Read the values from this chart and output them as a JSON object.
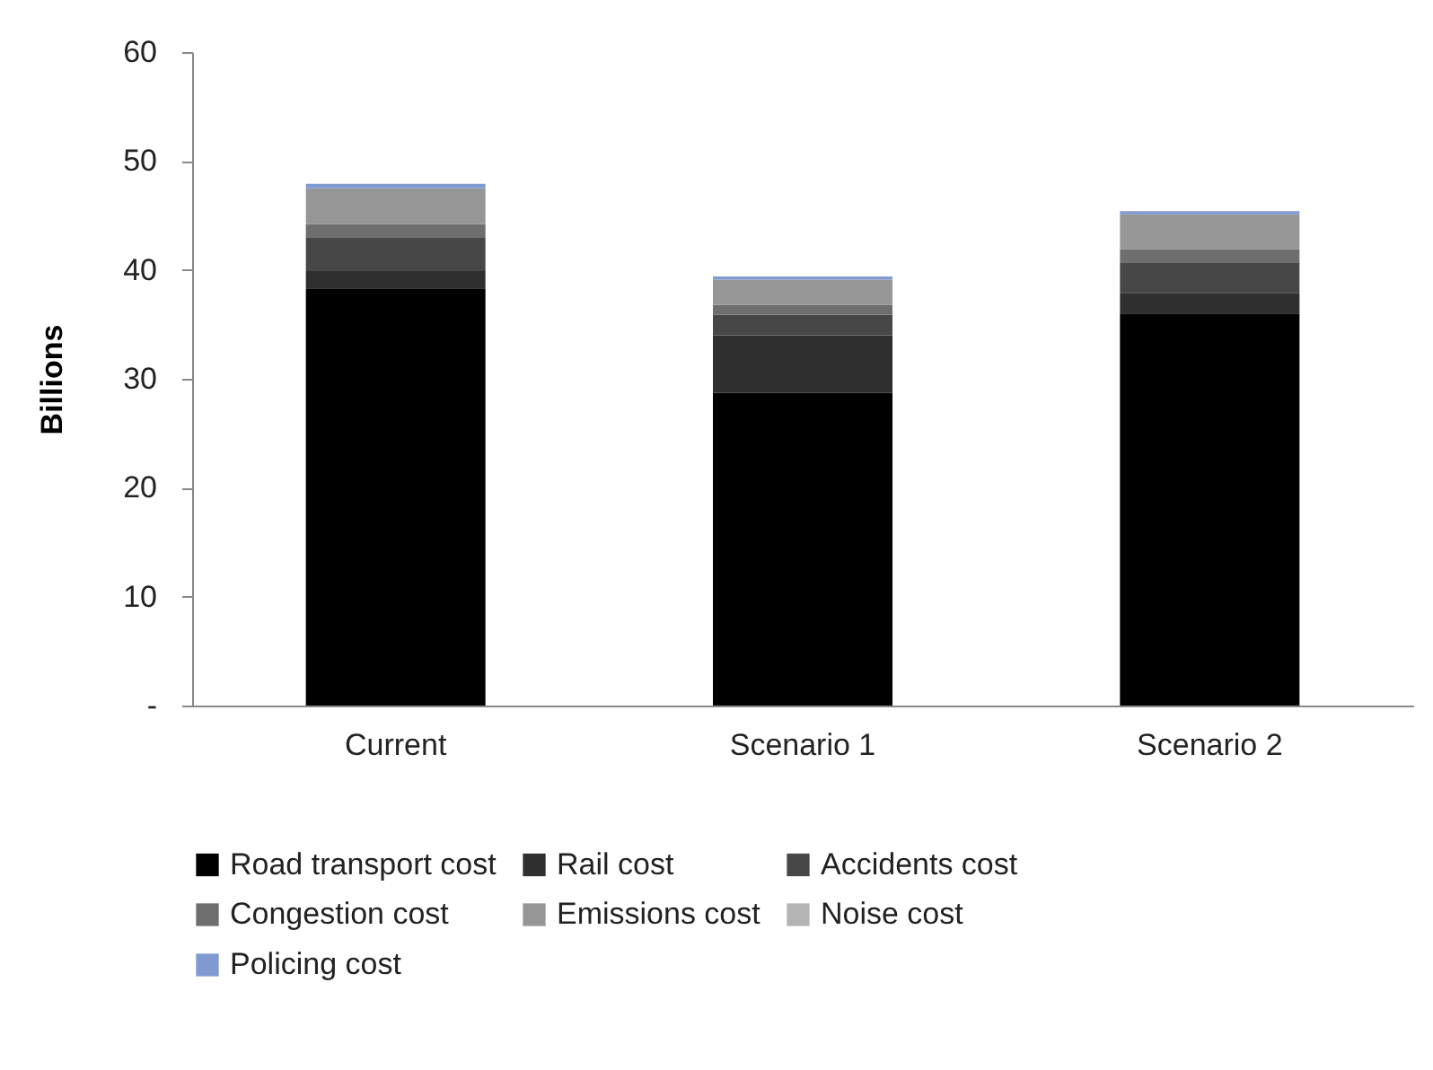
{
  "chart_data": {
    "type": "bar",
    "stacked": true,
    "ylabel": "Billions",
    "categories": [
      "Current",
      "Scenario 1",
      "Scenario 2"
    ],
    "series": [
      {
        "name": "Road transport cost",
        "color": "#000000",
        "values": [
          38.3,
          28.7,
          36.0
        ]
      },
      {
        "name": "Rail cost",
        "color": "#2f2f2f",
        "values": [
          1.6,
          5.3,
          1.9
        ]
      },
      {
        "name": "Accidents cost",
        "color": "#474747",
        "values": [
          3.1,
          1.9,
          2.8
        ]
      },
      {
        "name": "Congestion cost",
        "color": "#6e6e6e",
        "values": [
          1.2,
          0.9,
          1.2
        ]
      },
      {
        "name": "Emissions cost",
        "color": "#969696",
        "values": [
          3.3,
          2.3,
          3.2
        ]
      },
      {
        "name": "Noise cost",
        "color": "#b4b4b4",
        "values": [
          null,
          null,
          null
        ]
      },
      {
        "name": "Policing cost",
        "color": "#7f9ad0",
        "values": [
          0.4,
          0.3,
          0.3
        ]
      }
    ],
    "ylim": [
      0,
      60
    ],
    "yticks": [
      {
        "value": 0,
        "label": "-"
      },
      10,
      20,
      30,
      40,
      50,
      60
    ],
    "grid": false,
    "legend": "bottom"
  }
}
